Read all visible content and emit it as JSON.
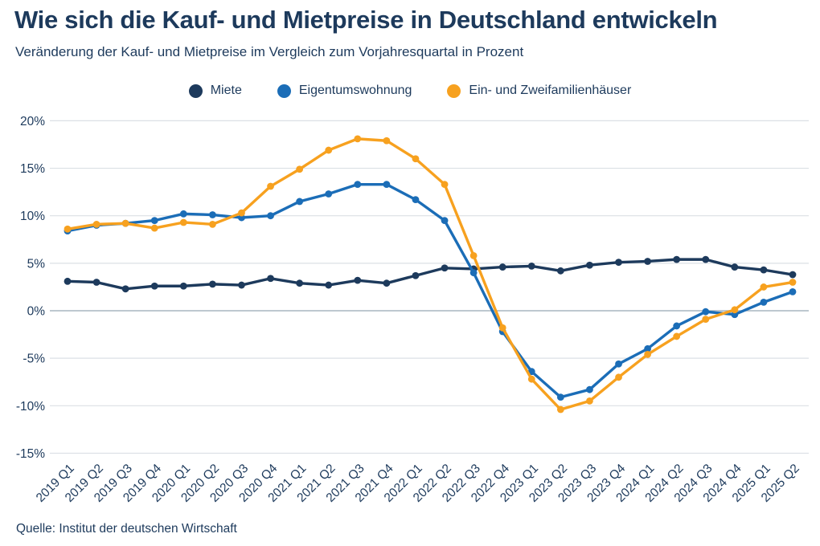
{
  "chart_data": {
    "type": "line",
    "title": "Wie sich die Kauf- und Mietpreise in Deutschland entwickeln",
    "subtitle": "Veränderung der Kauf- und Mietpreise im Vergleich zum Vorjahresquartal in Prozent",
    "x": [
      "2019 Q1",
      "2019 Q2",
      "2019 Q3",
      "2019 Q4",
      "2020 Q1",
      "2020 Q2",
      "2020 Q3",
      "2020 Q4",
      "2021 Q1",
      "2021 Q2",
      "2021 Q3",
      "2021 Q4",
      "2022 Q1",
      "2022 Q2",
      "2022 Q3",
      "2022 Q4",
      "2023 Q1",
      "2023 Q2",
      "2023 Q3",
      "2023 Q4",
      "2024 Q1",
      "2024 Q2",
      "2024 Q3",
      "2024 Q4",
      "2025 Q1",
      "2025 Q2"
    ],
    "series": [
      {
        "name": "Miete",
        "color": "#1d3a5c",
        "values": [
          3.1,
          3.0,
          2.3,
          2.6,
          2.6,
          2.8,
          2.7,
          3.4,
          2.9,
          2.7,
          3.2,
          2.9,
          3.7,
          4.5,
          4.4,
          4.6,
          4.7,
          4.2,
          4.8,
          5.1,
          5.2,
          5.4,
          5.4,
          4.6,
          4.3,
          3.8
        ]
      },
      {
        "name": "Eigentumswohnung",
        "color": "#1b6db7",
        "values": [
          8.4,
          9.0,
          9.2,
          9.5,
          10.2,
          10.1,
          9.8,
          10.0,
          11.5,
          12.3,
          13.3,
          13.3,
          11.7,
          9.5,
          4.0,
          -2.2,
          -6.4,
          -9.1,
          -8.3,
          -5.6,
          -4.0,
          -1.6,
          -0.1,
          -0.4,
          0.9,
          2.0
        ]
      },
      {
        "name": "Ein- und Zweifamilienhäuser",
        "color": "#f7a11f",
        "values": [
          8.6,
          9.1,
          9.2,
          8.7,
          9.3,
          9.1,
          10.3,
          13.1,
          14.9,
          16.9,
          18.1,
          17.9,
          16.0,
          13.3,
          5.8,
          -1.8,
          -7.2,
          -10.4,
          -9.5,
          -7.0,
          -4.6,
          -2.7,
          -0.9,
          0.1,
          2.5,
          3.0
        ]
      }
    ],
    "ylim": [
      -15,
      20
    ],
    "yticks": [
      20,
      15,
      10,
      5,
      0,
      -5,
      -10,
      -15
    ],
    "ytick_suffix": "%",
    "grid": true,
    "legend_position": "top-center",
    "colors": {
      "grid_line": "#dbe0e5",
      "zero_line": "#a9b5c0",
      "text": "#1d3a5c"
    }
  },
  "footer": {
    "source": "Quelle: Institut der deutschen Wirtschaft"
  }
}
